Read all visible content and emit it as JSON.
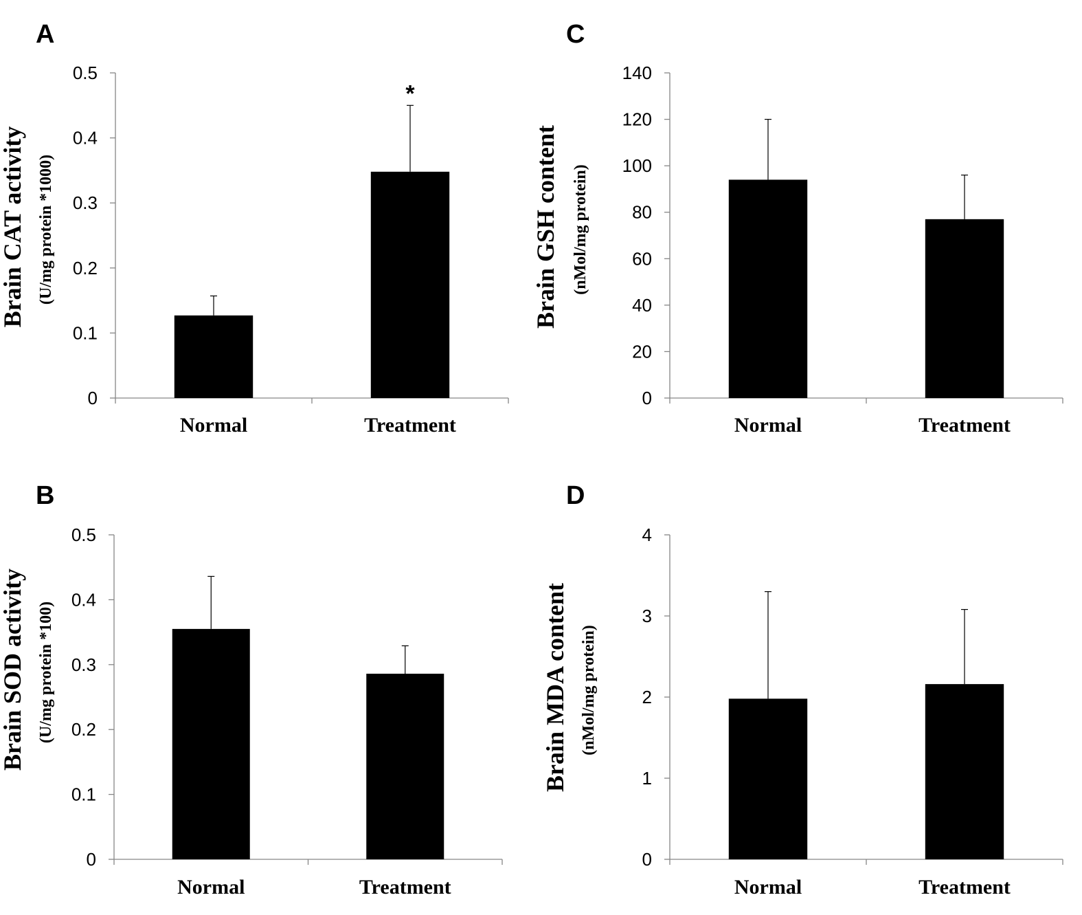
{
  "chart_data": [
    {
      "panel": "A",
      "type": "bar",
      "categories": [
        "Normal",
        "Treatment"
      ],
      "values": [
        0.127,
        0.348
      ],
      "errors": [
        0.03,
        0.102
      ],
      "ylabel": "Brain CAT activity",
      "ylabel_unit": "(U/mg protein *1000)",
      "ylim": [
        0,
        0.5
      ],
      "yticks": [
        "0",
        "0.1",
        "0.2",
        "0.3",
        "0.4",
        "0.5"
      ],
      "significance": [
        "",
        "*"
      ],
      "bar_color": "#000000"
    },
    {
      "panel": "C",
      "type": "bar",
      "categories": [
        "Normal",
        "Treatment"
      ],
      "values": [
        94,
        77
      ],
      "errors": [
        26,
        19
      ],
      "ylabel": "Brain GSH content",
      "ylabel_unit": "(nMol/mg protein)",
      "ylim": [
        0,
        140
      ],
      "yticks": [
        "0",
        "20",
        "40",
        "60",
        "80",
        "100",
        "120",
        "140"
      ],
      "significance": [
        "",
        ""
      ],
      "bar_color": "#000000"
    },
    {
      "panel": "B",
      "type": "bar",
      "categories": [
        "Normal",
        "Treatment"
      ],
      "values": [
        0.355,
        0.286
      ],
      "errors": [
        0.081,
        0.043
      ],
      "ylabel": "Brain SOD activity",
      "ylabel_unit": "(U/mg protein *100)",
      "ylim": [
        0,
        0.5
      ],
      "yticks": [
        "0",
        "0.1",
        "0.2",
        "0.3",
        "0.4",
        "0.5"
      ],
      "significance": [
        "",
        ""
      ],
      "bar_color": "#000000"
    },
    {
      "panel": "D",
      "type": "bar",
      "categories": [
        "Normal",
        "Treatment"
      ],
      "values": [
        1.98,
        2.16
      ],
      "errors": [
        1.32,
        0.92
      ],
      "ylabel": "Brain MDA content",
      "ylabel_unit": "(nMol/mg protein)",
      "ylim": [
        0,
        4
      ],
      "yticks": [
        "0",
        "1",
        "2",
        "3",
        "4"
      ],
      "significance": [
        "",
        ""
      ],
      "bar_color": "#000000"
    }
  ]
}
